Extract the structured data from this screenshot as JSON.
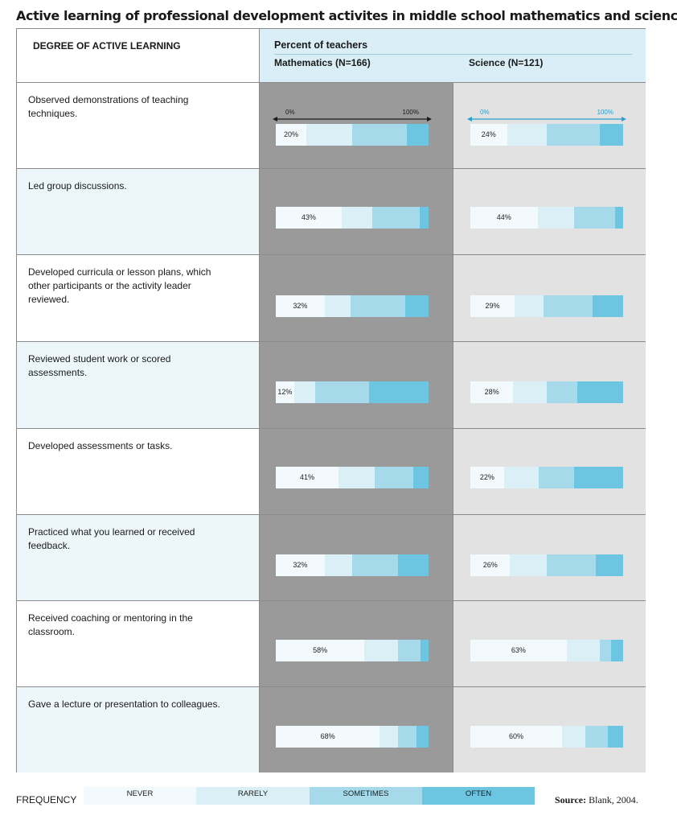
{
  "title": "Active learning of professional development activites in middle school mathematics and science",
  "header": {
    "left": "DEGREE OF ACTIVE LEARNING",
    "percent": "Percent of teachers",
    "math": "Mathematics (N=166)",
    "science": "Science (N=121)"
  },
  "axis": {
    "min_label": "0%",
    "max_label": "100%"
  },
  "colors": {
    "never": "#f2fafd",
    "rarely": "#dbeff6",
    "sometimes": "#a6d9ea",
    "often": "#6cc6e2",
    "math_panel": "#9a9a9a",
    "science_panel": "#e2e2e2",
    "science_axis": "#2a9fd0"
  },
  "legend": {
    "title": "FREQUENCY",
    "never": "NEVER",
    "rarely": "RARELY",
    "sometimes": "SOMETIMES",
    "often": "OFTEN"
  },
  "source": {
    "label": "Source:",
    "text": "Blank, 2004."
  },
  "chart_data": {
    "type": "bar",
    "orientation": "horizontal-stacked-100",
    "xlim": [
      0,
      100
    ],
    "series": [
      {
        "name": "NEVER"
      },
      {
        "name": "RARELY"
      },
      {
        "name": "SOMETIMES"
      },
      {
        "name": "OFTEN"
      }
    ],
    "categories": [
      "Observed demonstrations of teaching techniques.",
      "Led group discussions.",
      "Developed curricula or lesson plans, which other participants or the activity leader reviewed.",
      "Reviewed student work or scored assessments.",
      "Developed assessments or tasks.",
      "Practiced what you learned or received feedback.",
      "Received coaching or mentoring in the classroom.",
      "Gave a lecture or presentation to colleagues."
    ],
    "panels": [
      {
        "name": "Mathematics (N=166)",
        "rows": [
          {
            "never": 20,
            "rarely": 30,
            "sometimes": 36,
            "often": 14
          },
          {
            "never": 43,
            "rarely": 20,
            "sometimes": 31,
            "often": 6
          },
          {
            "never": 32,
            "rarely": 17,
            "sometimes": 36,
            "often": 15
          },
          {
            "never": 12,
            "rarely": 14,
            "sometimes": 35,
            "often": 39
          },
          {
            "never": 41,
            "rarely": 24,
            "sometimes": 25,
            "often": 10
          },
          {
            "never": 32,
            "rarely": 18,
            "sometimes": 30,
            "often": 20
          },
          {
            "never": 58,
            "rarely": 22,
            "sometimes": 15,
            "often": 5
          },
          {
            "never": 68,
            "rarely": 12,
            "sometimes": 12,
            "often": 8
          }
        ]
      },
      {
        "name": "Science (N=121)",
        "rows": [
          {
            "never": 24,
            "rarely": 26,
            "sometimes": 35,
            "often": 15
          },
          {
            "never": 44,
            "rarely": 24,
            "sometimes": 27,
            "often": 5
          },
          {
            "never": 29,
            "rarely": 19,
            "sometimes": 32,
            "often": 20
          },
          {
            "never": 28,
            "rarely": 22,
            "sometimes": 20,
            "often": 30
          },
          {
            "never": 22,
            "rarely": 23,
            "sometimes": 23,
            "often": 32
          },
          {
            "never": 26,
            "rarely": 24,
            "sometimes": 32,
            "often": 18
          },
          {
            "never": 63,
            "rarely": 22,
            "sometimes": 7,
            "often": 8
          },
          {
            "never": 60,
            "rarely": 15,
            "sometimes": 15,
            "often": 10
          }
        ]
      }
    ]
  }
}
